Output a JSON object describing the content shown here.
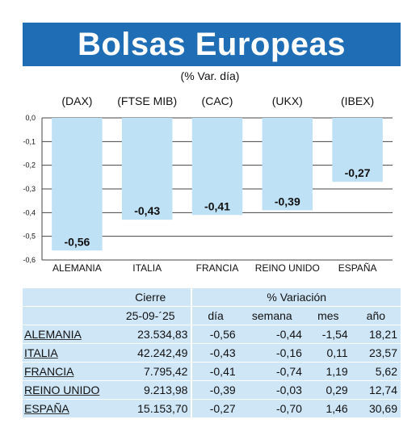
{
  "header": {
    "title": "Bolsas Europeas",
    "subtitle": "(% Var. día)"
  },
  "chart_data": {
    "type": "bar",
    "index_labels": [
      "(DAX)",
      "(FTSE MIB)",
      "(CAC)",
      "(UKX)",
      "(IBEX)"
    ],
    "categories": [
      "ALEMANIA",
      "ITALIA",
      "FRANCIA",
      "REINO UNIDO",
      "ESPAÑA"
    ],
    "values": [
      -0.56,
      -0.43,
      -0.41,
      -0.39,
      -0.27
    ],
    "value_labels": [
      "-0,56",
      "-0,43",
      "-0,41",
      "-0,39",
      "-0,27"
    ],
    "ylim": [
      -0.6,
      0.0
    ],
    "yticks": [
      0.0,
      -0.1,
      -0.2,
      -0.3,
      -0.4,
      -0.5,
      -0.6
    ],
    "ytick_labels": [
      "0,0",
      "-0,1",
      "-0,2",
      "-0,3",
      "-0,4",
      "-0,5",
      "-0,6"
    ],
    "grid": true,
    "bar_color": "#bfe1f5"
  },
  "table": {
    "group_headers": {
      "cierre": "Cierre",
      "variacion": "% Variación"
    },
    "columns": [
      "25-09-´25",
      "día",
      "semana",
      "mes",
      "año"
    ],
    "rows": [
      {
        "name": "ALEMANIA",
        "cierre": "23.534,83",
        "dia": "-0,56",
        "semana": "-0,44",
        "mes": "-1,54",
        "ano": "18,21"
      },
      {
        "name": "ITALIA",
        "cierre": "42.242,49",
        "dia": "-0,43",
        "semana": "-0,16",
        "mes": "0,11",
        "ano": "23,57"
      },
      {
        "name": "FRANCIA",
        "cierre": "7.795,42",
        "dia": "-0,41",
        "semana": "-0,74",
        "mes": "1,19",
        "ano": "5,62"
      },
      {
        "name": "REINO UNIDO",
        "cierre": "9.213,98",
        "dia": "-0,39",
        "semana": "-0,03",
        "mes": "0,29",
        "ano": "12,74"
      },
      {
        "name": "ESPAÑA",
        "cierre": "15.153,70",
        "dia": "-0,27",
        "semana": "-0,70",
        "mes": "1,46",
        "ano": "30,69"
      }
    ]
  },
  "colors": {
    "banner": "#1f6db5",
    "table_bg": "#cfe6f7"
  }
}
